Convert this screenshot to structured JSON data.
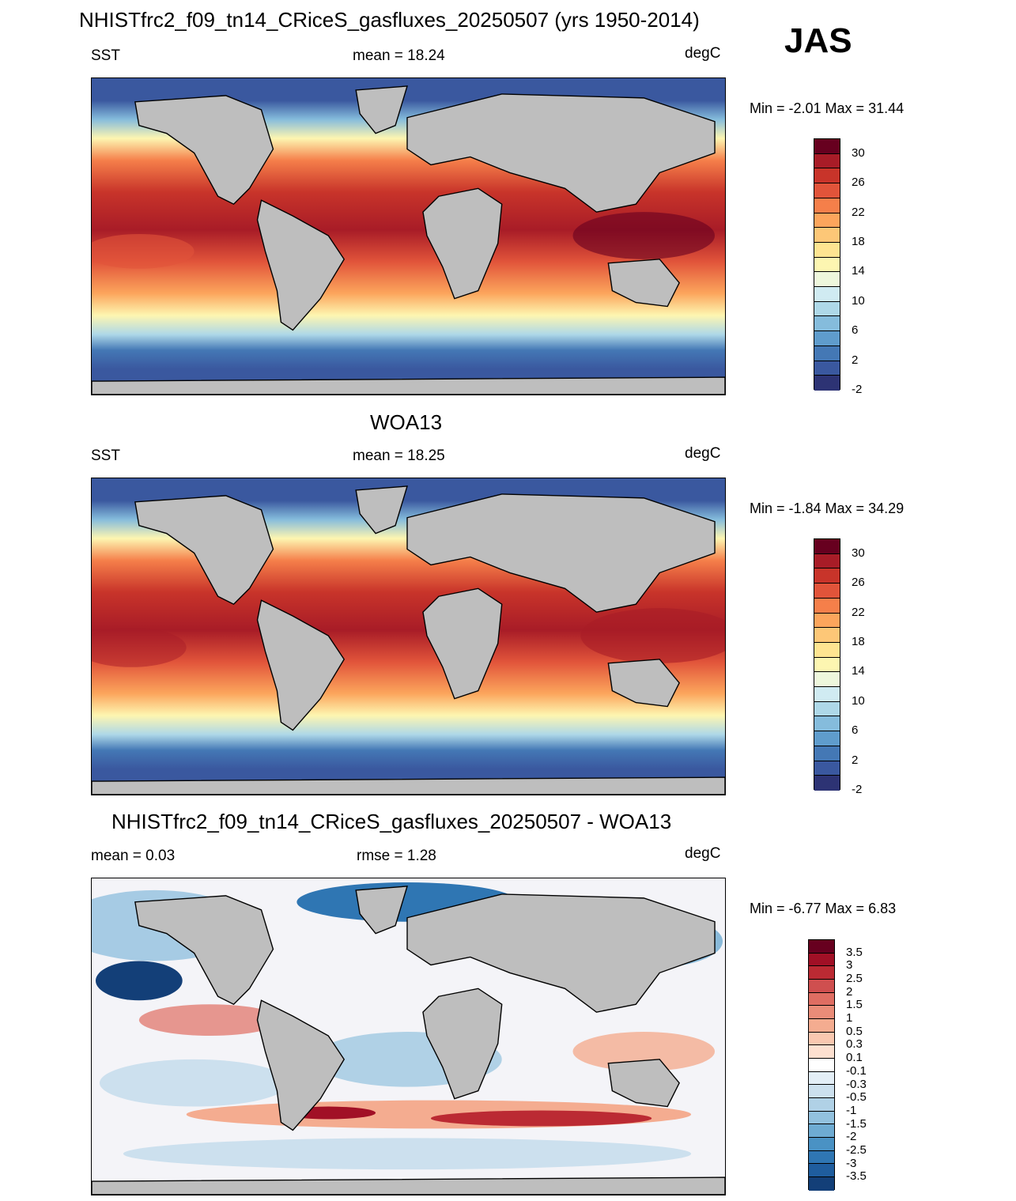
{
  "season": "JAS",
  "panels": [
    {
      "title": "NHISTfrc2_f09_tn14_CRiceS_gasfluxes_20250507 (yrs 1950-2014)",
      "left": "SST",
      "center": "mean =  18.24",
      "units": "degC",
      "minmax": "Min =  -2.01 Max =  31.44",
      "colorbar": {
        "labels": [
          "30",
          "26",
          "22",
          "18",
          "14",
          "10",
          "6",
          "2",
          "-2"
        ],
        "colors": [
          "#67001f",
          "#a81c27",
          "#c8342a",
          "#e1543a",
          "#f57f4a",
          "#fca55c",
          "#fdc777",
          "#fee491",
          "#fdf6b1",
          "#eef7dc",
          "#d0ebf2",
          "#aed8e8",
          "#85bcdc",
          "#5f9ccc",
          "#4478b5",
          "#3a589f",
          "#2d3374"
        ]
      }
    },
    {
      "title": "WOA13",
      "left": "SST",
      "center": "mean =  18.25",
      "units": "degC",
      "minmax": "Min =  -1.84 Max =  34.29",
      "colorbar": {
        "labels": [
          "30",
          "26",
          "22",
          "18",
          "14",
          "10",
          "6",
          "2",
          "-2"
        ],
        "colors": [
          "#67001f",
          "#a81c27",
          "#c8342a",
          "#e1543a",
          "#f57f4a",
          "#fca55c",
          "#fdc777",
          "#fee491",
          "#fdf6b1",
          "#eef7dc",
          "#d0ebf2",
          "#aed8e8",
          "#85bcdc",
          "#5f9ccc",
          "#4478b5",
          "#3a589f",
          "#2d3374"
        ]
      }
    },
    {
      "title": "NHISTfrc2_f09_tn14_CRiceS_gasfluxes_20250507 - WOA13",
      "left": "mean =   0.03",
      "center": "rmse =   1.28",
      "units": "degC",
      "minmax": "Min =  -6.77 Max =   6.83",
      "colorbar": {
        "labels": [
          "3.5",
          "3",
          "2.5",
          "2",
          "1.5",
          "1",
          "0.5",
          "0.3",
          "0.1",
          "-0.1",
          "-0.3",
          "-0.5",
          "-1",
          "-1.5",
          "-2",
          "-2.5",
          "-3",
          "-3.5"
        ],
        "colors": [
          "#67001f",
          "#a11026",
          "#bb2a33",
          "#cf4f4f",
          "#df6d62",
          "#ea8c78",
          "#f4ac90",
          "#f9c8b0",
          "#fde0d0",
          "#ffffff",
          "#e3eef6",
          "#cce0ee",
          "#b0d1e6",
          "#92c1de",
          "#6eabd2",
          "#4a92c4",
          "#2f76b3",
          "#1f5d9e",
          "#133f78"
        ]
      }
    }
  ]
}
